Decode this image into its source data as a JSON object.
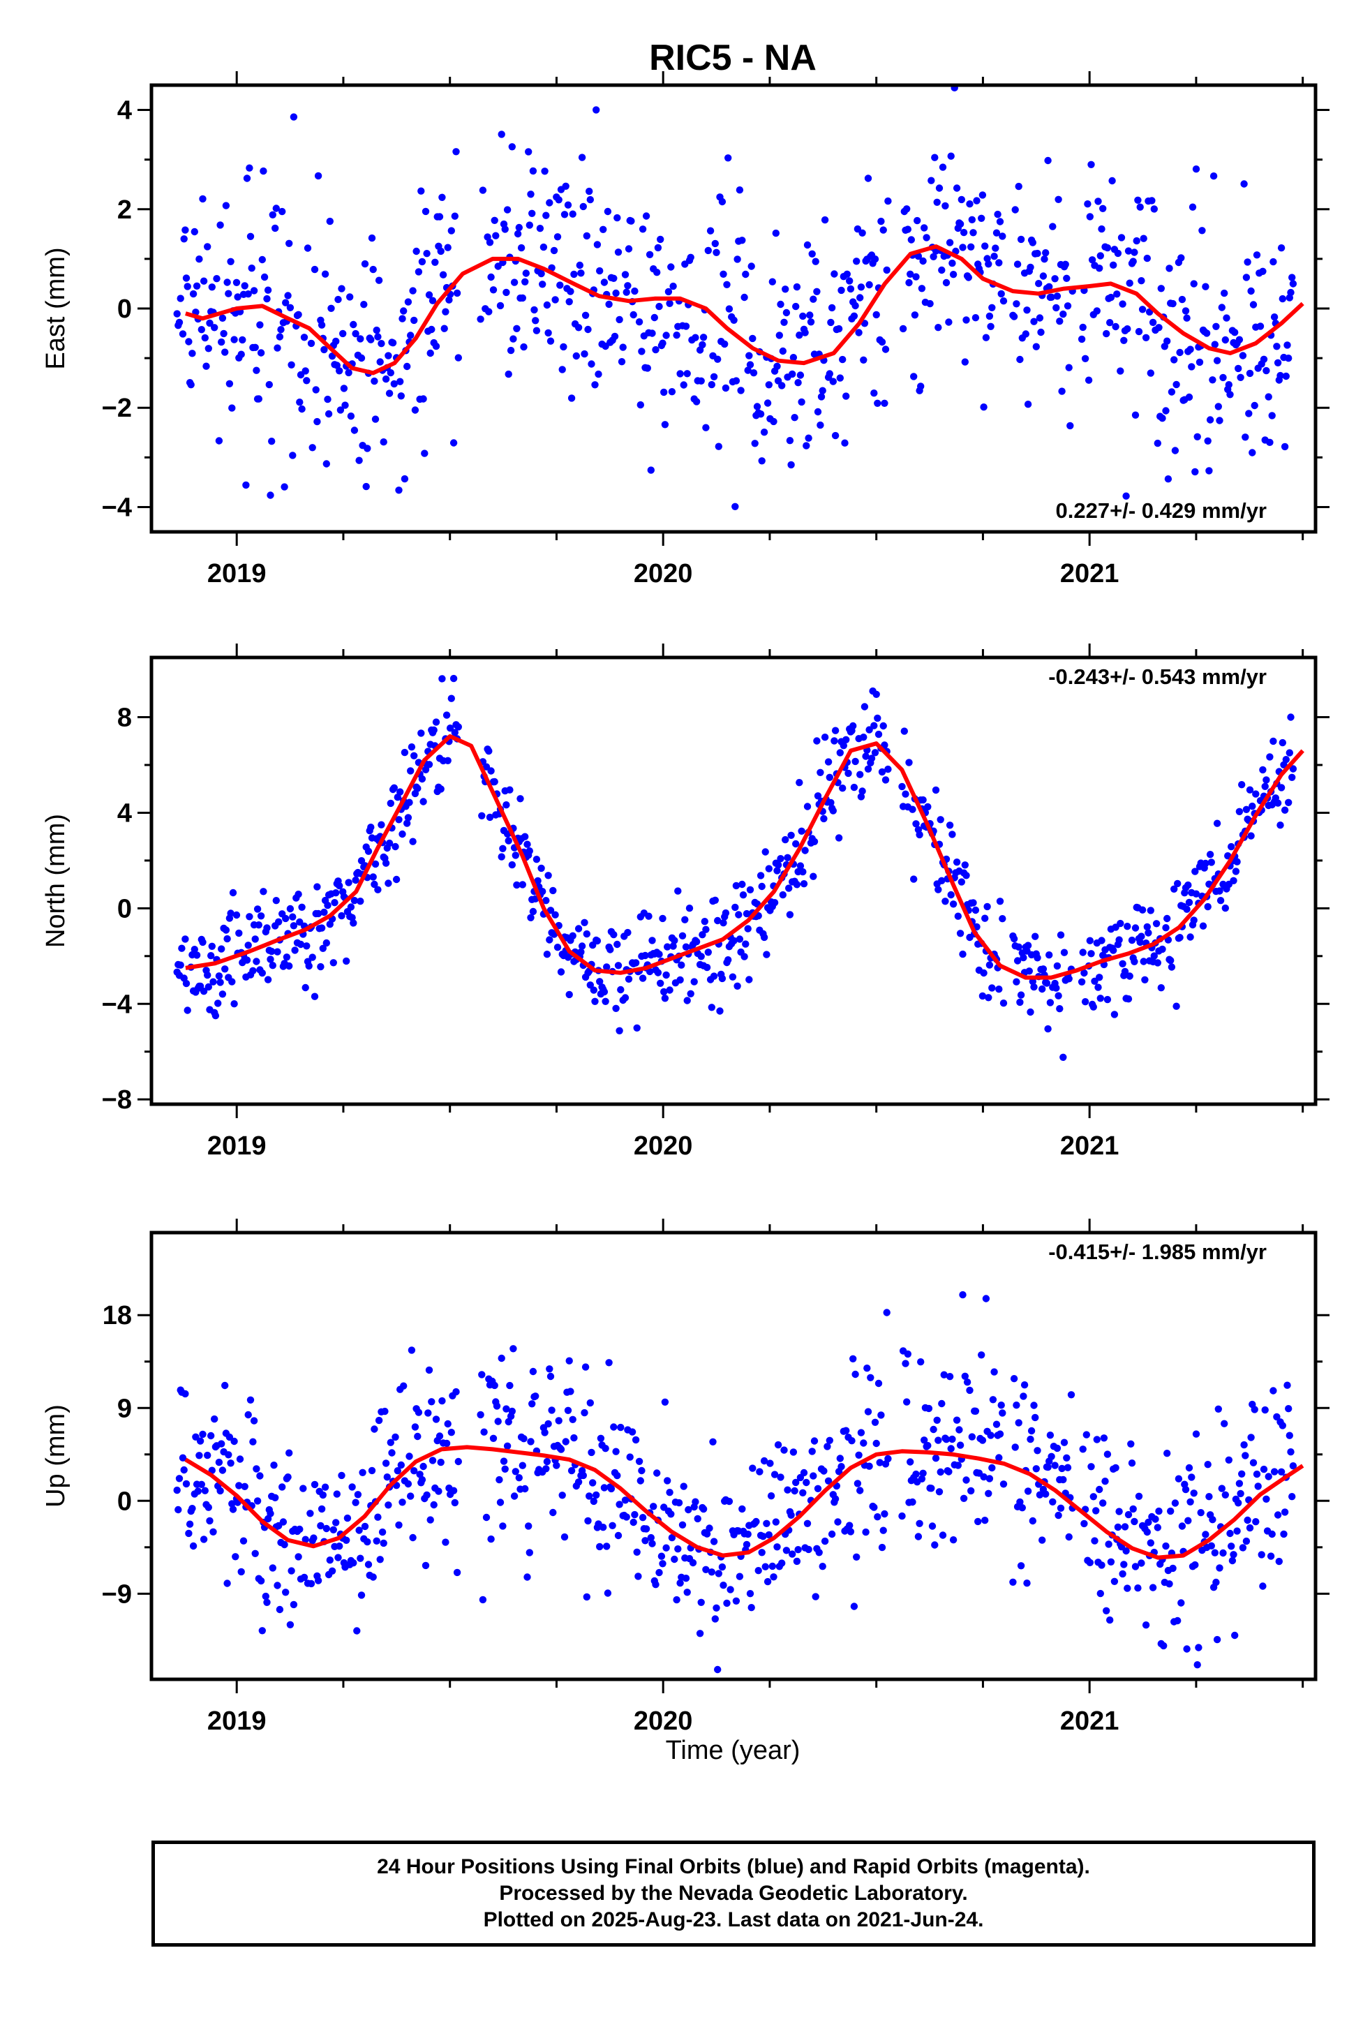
{
  "title": "RIC5 - NA",
  "xlabel": "Time (year)",
  "footer": {
    "line1": "24 Hour Positions Using Final Orbits (blue) and Rapid Orbits (magenta).",
    "line2": "Processed by the Nevada Geodetic Laboratory.",
    "line3": "Plotted on 2025-Aug-23. Last data on 2021-Jun-24."
  },
  "colors": {
    "points": "#0000ff",
    "model": "#ff0000",
    "frame": "#000000"
  },
  "chart_data": [
    {
      "type": "scatter",
      "panel": "east",
      "ylabel": "East (mm)",
      "rate_text": "0.227+/- 0.429 mm/yr",
      "rate_position": "bottom-right",
      "xlim": [
        2018.8,
        2021.53
      ],
      "ylim": [
        -4.5,
        4.5
      ],
      "xticks": [
        2019,
        2020,
        2021
      ],
      "yticks": [
        -4,
        -2,
        0,
        2,
        4
      ],
      "series": [
        {
          "x": [
            2018.88,
            2018.92,
            2018.96,
            2019.0,
            2019.06,
            2019.12,
            2019.17,
            2019.22,
            2019.27,
            2019.32,
            2019.37,
            2019.42,
            2019.47,
            2019.53,
            2019.6,
            2019.66,
            2019.72,
            2019.79,
            2019.85,
            2019.92,
            2019.98,
            2020.04,
            2020.1,
            2020.15,
            2020.21,
            2020.27,
            2020.33,
            2020.4,
            2020.46,
            2020.52,
            2020.58,
            2020.64,
            2020.7,
            2020.75,
            2020.82,
            2020.88,
            2020.94,
            2021.0,
            2021.05,
            2021.11,
            2021.16,
            2021.22,
            2021.28,
            2021.33,
            2021.39,
            2021.45,
            2021.5
          ],
          "y": [
            -0.1,
            -0.2,
            -0.1,
            0.0,
            0.05,
            -0.2,
            -0.4,
            -0.8,
            -1.2,
            -1.3,
            -1.1,
            -0.6,
            0.1,
            0.7,
            1.0,
            1.0,
            0.8,
            0.5,
            0.25,
            0.15,
            0.2,
            0.2,
            0.0,
            -0.4,
            -0.8,
            -1.05,
            -1.1,
            -0.9,
            -0.3,
            0.5,
            1.1,
            1.25,
            1.0,
            0.6,
            0.35,
            0.3,
            0.4,
            0.45,
            0.5,
            0.3,
            -0.1,
            -0.5,
            -0.8,
            -0.9,
            -0.7,
            -0.3,
            0.1
          ]
        }
      ]
    },
    {
      "type": "scatter",
      "panel": "north",
      "ylabel": "North (mm)",
      "rate_text": "-0.243+/- 0.543 mm/yr",
      "rate_position": "top-right",
      "xlim": [
        2018.8,
        2021.53
      ],
      "ylim": [
        -8.2,
        10.5
      ],
      "xticks": [
        2019,
        2020,
        2021
      ],
      "yticks": [
        -8,
        -4,
        0,
        4,
        8
      ],
      "series": [
        {
          "x": [
            2018.88,
            2018.95,
            2019.03,
            2019.1,
            2019.16,
            2019.22,
            2019.28,
            2019.33,
            2019.39,
            2019.44,
            2019.5,
            2019.55,
            2019.61,
            2019.67,
            2019.72,
            2019.78,
            2019.84,
            2019.9,
            2019.96,
            2020.02,
            2020.08,
            2020.14,
            2020.2,
            2020.26,
            2020.32,
            2020.38,
            2020.44,
            2020.5,
            2020.56,
            2020.62,
            2020.68,
            2020.73,
            2020.79,
            2020.85,
            2020.91,
            2020.97,
            2021.03,
            2021.09,
            2021.15,
            2021.21,
            2021.27,
            2021.33,
            2021.39,
            2021.45,
            2021.5
          ],
          "y": [
            -2.5,
            -2.3,
            -1.8,
            -1.3,
            -0.9,
            -0.3,
            0.7,
            2.5,
            4.5,
            6.2,
            7.2,
            6.8,
            4.5,
            2.2,
            0.0,
            -1.8,
            -2.6,
            -2.7,
            -2.5,
            -2.1,
            -1.7,
            -1.3,
            -0.5,
            0.7,
            2.5,
            4.6,
            6.6,
            6.9,
            5.8,
            3.5,
            1.0,
            -1.0,
            -2.4,
            -2.9,
            -2.9,
            -2.6,
            -2.2,
            -1.9,
            -1.5,
            -0.8,
            0.4,
            2.0,
            3.9,
            5.6,
            6.6
          ]
        }
      ]
    },
    {
      "type": "scatter",
      "panel": "up",
      "ylabel": "Up (mm)",
      "rate_text": "-0.415+/- 1.985 mm/yr",
      "rate_position": "top-right",
      "xlim": [
        2018.8,
        2021.53
      ],
      "ylim": [
        -17.3,
        26
      ],
      "xticks": [
        2019,
        2020,
        2021
      ],
      "yticks": [
        -9,
        0,
        9,
        18
      ],
      "series": [
        {
          "x": [
            2018.88,
            2018.94,
            2019.0,
            2019.06,
            2019.12,
            2019.18,
            2019.24,
            2019.3,
            2019.36,
            2019.42,
            2019.48,
            2019.54,
            2019.6,
            2019.66,
            2019.72,
            2019.78,
            2019.84,
            2019.9,
            2019.96,
            2020.02,
            2020.08,
            2020.14,
            2020.2,
            2020.26,
            2020.32,
            2020.38,
            2020.44,
            2020.5,
            2020.56,
            2020.62,
            2020.68,
            2020.74,
            2020.8,
            2020.86,
            2020.92,
            2020.98,
            2021.04,
            2021.1,
            2021.16,
            2021.22,
            2021.28,
            2021.34,
            2021.4,
            2021.46,
            2021.5
          ],
          "y": [
            4,
            2.5,
            0.5,
            -2,
            -3.8,
            -4.4,
            -3.6,
            -1.5,
            1.5,
            3.8,
            5.0,
            5.2,
            5.0,
            4.7,
            4.4,
            4.0,
            3.0,
            1.2,
            -1.0,
            -3.0,
            -4.5,
            -5.3,
            -5.0,
            -3.6,
            -1.5,
            1.0,
            3.2,
            4.5,
            4.8,
            4.7,
            4.5,
            4.1,
            3.6,
            2.6,
            1.0,
            -1.0,
            -3.0,
            -4.6,
            -5.5,
            -5.3,
            -3.8,
            -1.8,
            0.6,
            2.3,
            3.4
          ]
        }
      ]
    }
  ]
}
